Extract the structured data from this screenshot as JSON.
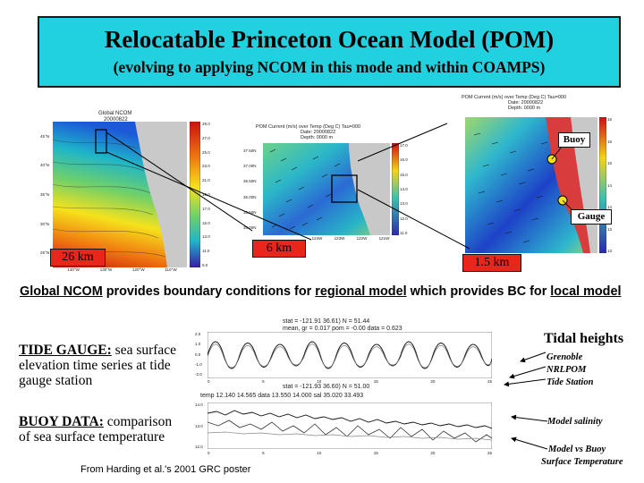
{
  "banner": {
    "title": "Relocatable Princeton Ocean Model (POM)",
    "subtitle": "(evolving to applying NCOM in this mode and within COAMPS)"
  },
  "maps": {
    "global": {
      "header_line1": "Global NCOM",
      "header_line2": "20000822",
      "scale_label": "26 km",
      "lat_ticks": [
        "45°N",
        "40°N",
        "35°N",
        "30°N",
        "25°N"
      ],
      "lon_ticks": [
        "140°W",
        "130°W",
        "120°W",
        "110°W"
      ],
      "colorbar_ticks": [
        "29.0",
        "27.0",
        "25.0",
        "23.0",
        "21.0",
        "19.0",
        "17.0",
        "15.0",
        "13.0",
        "11.0",
        "9.0"
      ]
    },
    "regional": {
      "header_line1": "POM Current (m/s) over Temp (Deg C) Tau=000",
      "header_line2": "Date: 20000822",
      "header_line3": "Depth: 0000 m",
      "scale_label": "6 km",
      "lat_ticks": [
        "37.50N",
        "37.00N",
        "36.50N",
        "36.00N",
        "35.50N",
        "35.00N"
      ],
      "lon_ticks": [
        "124W",
        "123W",
        "122W",
        "121W"
      ],
      "colorbar_ticks": [
        "17.0",
        "16.0",
        "15.0",
        "14.0",
        "13.0",
        "12.0",
        "11.0"
      ]
    },
    "local": {
      "header_line1": "POM Current (m/s) over Temp (Deg C) Tau=000",
      "header_line2": "Date: 20000822",
      "header_line3": "Depth: 0000 m",
      "scale_label": "1.5 km",
      "buoy_label": "Buoy",
      "gauge_label": "Gauge",
      "colorbar_ticks": [
        "16.0",
        "15.5",
        "15.0",
        "14.5",
        "14.0",
        "13.5",
        "13.0"
      ]
    }
  },
  "boundary_line": {
    "part1": "Global NCOM",
    "part2": " provides boundary conditions for ",
    "part3": "regional model",
    "part4": " which provides BC for ",
    "part5": "local model"
  },
  "tide_gauge": {
    "heading": "TIDE GAUGE:",
    "text_line1": " sea surface",
    "text_line2": "elevation time series at tide",
    "text_line3": "gauge station"
  },
  "buoy_data": {
    "heading": "BUOY DATA:",
    "text_line1": " comparison",
    "text_line2": "of sea surface temperature"
  },
  "tide_plot": {
    "stat1": "stat = -121.91   36.61)  N =    51.44",
    "stat2": "mean, gr =  0.017  pom =  -0.00  data =   0.623",
    "stat3": "stat = -121.93   36.60)  N =    51.00",
    "y_ticks": [
      "2.0",
      "1.0",
      "0.0",
      "-1.0",
      "-2.0"
    ],
    "x_ticks": [
      "0",
      "5",
      "10",
      "15",
      "20",
      "25"
    ]
  },
  "buoy_plot": {
    "header": "temp  12.140  14.565  data  13.550  14.000  sal  35.020  33.493",
    "y_ticks": [
      "14.0",
      "13.0",
      "12.0"
    ],
    "x_ticks": [
      "0",
      "5",
      "10",
      "15",
      "20",
      "25"
    ]
  },
  "right_labels": {
    "tidal_heights": "Tidal heights",
    "grenoble": "Grenoble",
    "nrlpom": "NRLPOM",
    "tide_station": "Tide Station",
    "model_salinity": "Model salinity",
    "model_vs_buoy_1": "Model vs Buoy",
    "model_vs_buoy_2": "Surface Temperature"
  },
  "credit": "From Harding et al.'s 2001 GRC poster"
}
